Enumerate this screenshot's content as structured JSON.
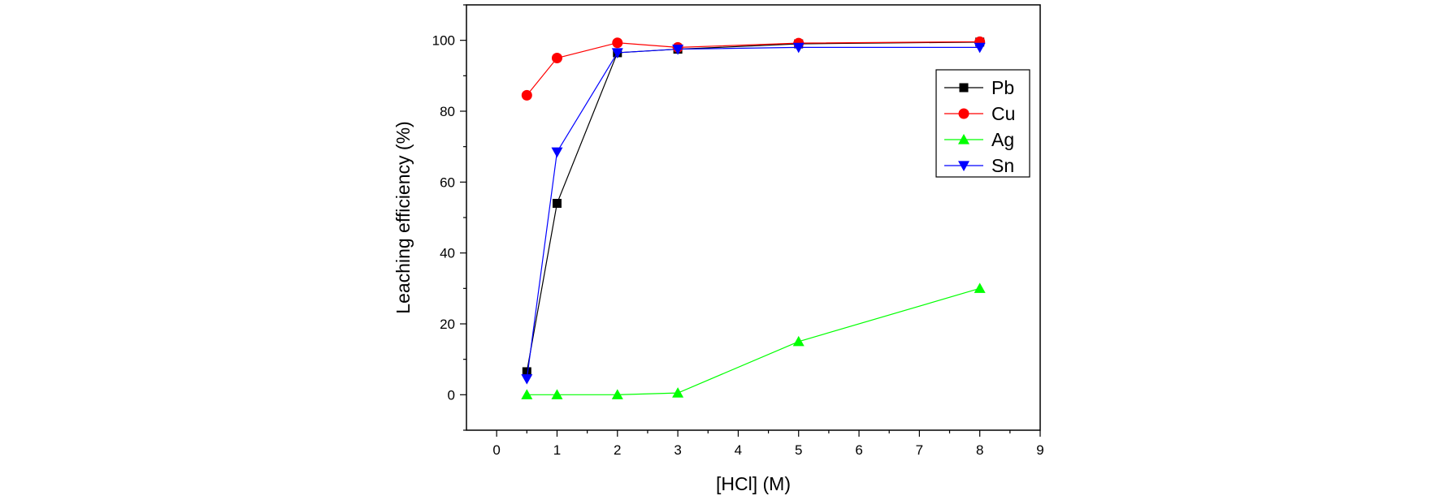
{
  "chart_data": {
    "type": "line",
    "title": "",
    "xlabel": "[HCl] (M)",
    "ylabel": "Leaching efficiency (%)",
    "xlim": [
      -0.5,
      9
    ],
    "ylim": [
      -10,
      110
    ],
    "xticks": [
      "0",
      "1",
      "2",
      "3",
      "4",
      "5",
      "6",
      "7",
      "8",
      "9"
    ],
    "yticks": [
      "0",
      "20",
      "40",
      "60",
      "80",
      "100"
    ],
    "x": [
      0.5,
      1,
      2,
      3,
      5,
      8
    ],
    "legend_position": "top-right",
    "series": [
      {
        "name": "Pb",
        "color": "#000000",
        "marker": "square",
        "values": [
          6.5,
          54,
          96.5,
          97.5,
          99,
          99.5
        ]
      },
      {
        "name": "Cu",
        "color": "#ff0000",
        "marker": "circle",
        "values": [
          84.5,
          95,
          99.3,
          98,
          99.2,
          99.6
        ]
      },
      {
        "name": "Ag",
        "color": "#00ff00",
        "marker": "triangle-up",
        "values": [
          0,
          0,
          0,
          0.5,
          15,
          30
        ]
      },
      {
        "name": "Sn",
        "color": "#0000ff",
        "marker": "triangle-down",
        "values": [
          4.5,
          68.5,
          96.5,
          97.5,
          98,
          98
        ]
      }
    ]
  }
}
